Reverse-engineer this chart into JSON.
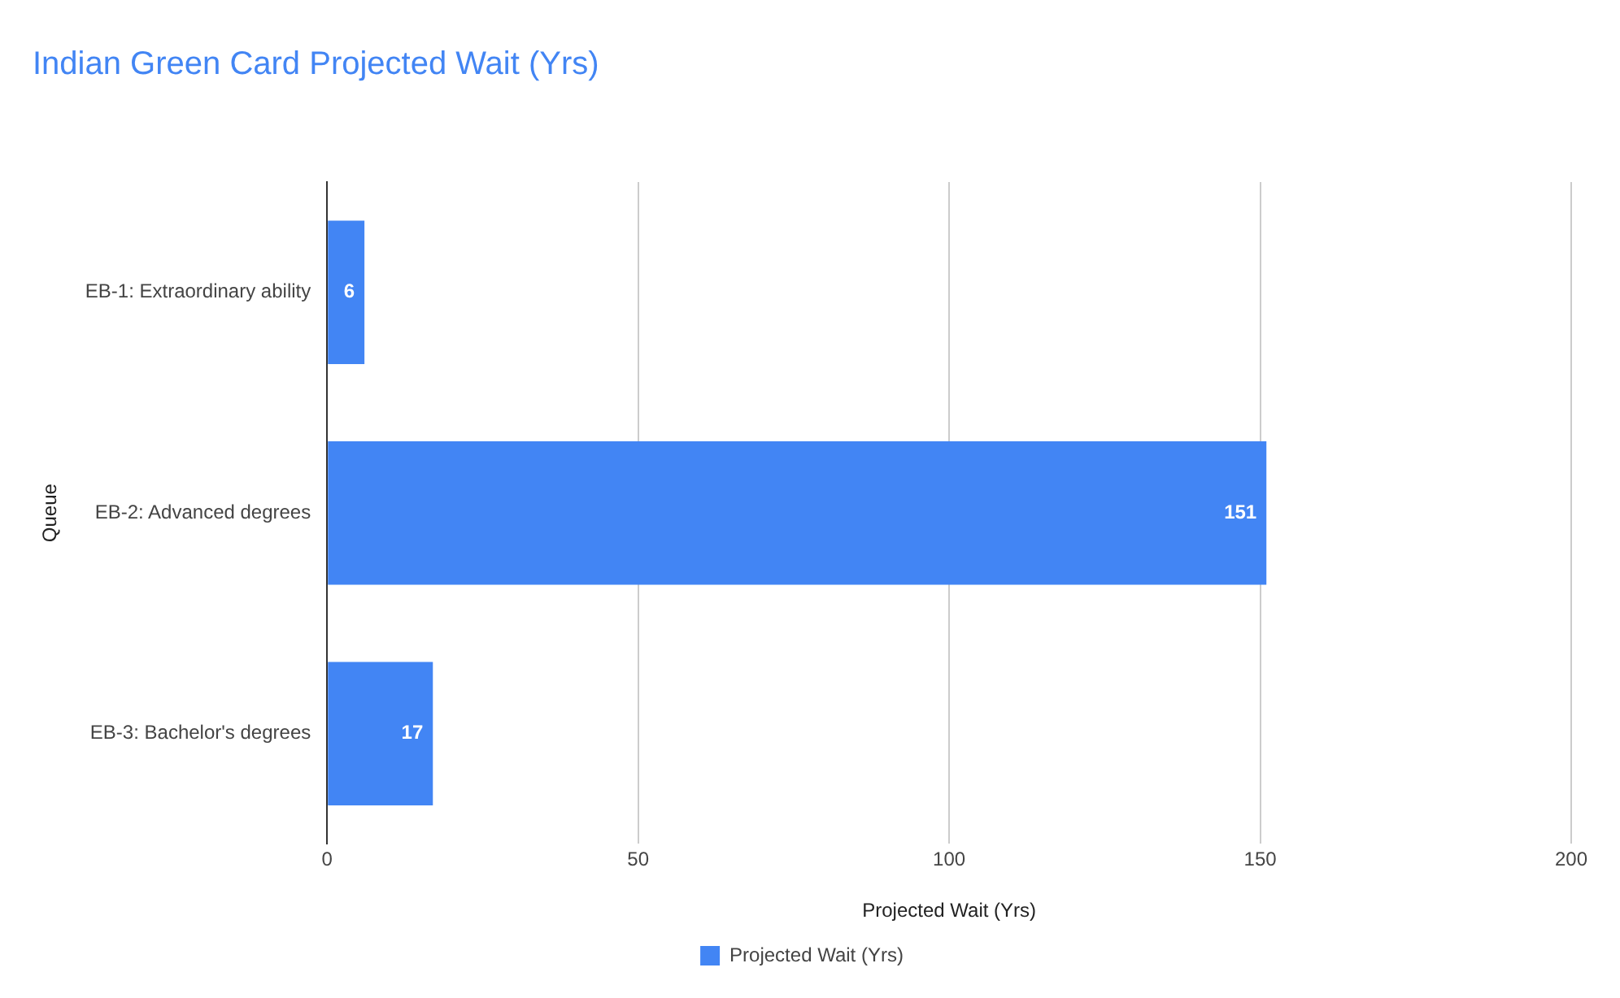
{
  "chart_data": {
    "type": "bar",
    "orientation": "horizontal",
    "title": "Indian Green Card Projected Wait (Yrs)",
    "categories": [
      "EB-1: Extraordinary ability",
      "EB-2: Advanced degrees",
      "EB-3: Bachelor's degrees"
    ],
    "series": [
      {
        "name": "Projected Wait (Yrs)",
        "color": "#4285f4",
        "values": [
          6,
          151,
          17
        ]
      }
    ],
    "xlabel": "Projected Wait (Yrs)",
    "ylabel": "Queue",
    "xlim": [
      0,
      200
    ],
    "xticks": [
      0,
      50,
      100,
      150,
      200
    ],
    "grid": "x",
    "legend": "bottom",
    "data_labels": true
  }
}
